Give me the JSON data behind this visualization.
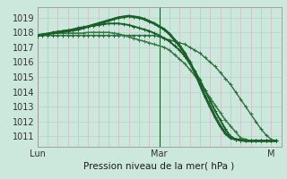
{
  "bg_color": "#cce8dc",
  "plot_bg_color": "#cce8dc",
  "grid_h_color": "#b8d8cc",
  "grid_v_color": "#d4b8c4",
  "ylabel_values": [
    1011,
    1012,
    1013,
    1014,
    1015,
    1016,
    1017,
    1018,
    1019
  ],
  "ymin": 1010.3,
  "ymax": 1019.7,
  "xmin": 0,
  "xmax": 48,
  "xlabel": "Pression niveau de la mer( hPa )",
  "xtick_labels": [
    "Lun",
    "Mar",
    "M"
  ],
  "xtick_positions": [
    0,
    24,
    46
  ],
  "series": [
    {
      "x": [
        0,
        1,
        2,
        3,
        4,
        5,
        6,
        7,
        8,
        9,
        10,
        11,
        12,
        13,
        14,
        15,
        16,
        17,
        18,
        19,
        20,
        21,
        22,
        23,
        24,
        25,
        26,
        27,
        28,
        29,
        30,
        31,
        32,
        33,
        34,
        35,
        36,
        37,
        38,
        39,
        40,
        41,
        42,
        43,
        44,
        45,
        46,
        47
      ],
      "y": [
        1017.8,
        1017.8,
        1017.8,
        1017.8,
        1017.8,
        1017.8,
        1017.8,
        1017.8,
        1017.8,
        1017.8,
        1017.8,
        1017.8,
        1017.8,
        1017.8,
        1017.8,
        1017.8,
        1017.8,
        1017.8,
        1017.8,
        1017.8,
        1017.8,
        1017.8,
        1017.8,
        1017.8,
        1017.7,
        1017.6,
        1017.5,
        1017.4,
        1017.3,
        1017.2,
        1017.0,
        1016.8,
        1016.6,
        1016.3,
        1016.0,
        1015.7,
        1015.3,
        1014.9,
        1014.5,
        1014.0,
        1013.5,
        1013.0,
        1012.5,
        1012.0,
        1011.5,
        1011.1,
        1010.8,
        1010.7
      ],
      "color": "#2d6e3e",
      "lw": 1.0,
      "marker": "+"
    },
    {
      "x": [
        0,
        1,
        2,
        3,
        4,
        5,
        6,
        7,
        8,
        9,
        10,
        11,
        12,
        13,
        14,
        15,
        16,
        17,
        18,
        19,
        20,
        21,
        22,
        23,
        24,
        25,
        26,
        27,
        28,
        29,
        30,
        31,
        32,
        33,
        34,
        35,
        36,
        37,
        38,
        39,
        40,
        41,
        42,
        43,
        44,
        45,
        46,
        47
      ],
      "y": [
        1017.8,
        1017.85,
        1017.9,
        1017.95,
        1017.95,
        1017.95,
        1017.95,
        1017.95,
        1017.95,
        1017.95,
        1018.0,
        1018.0,
        1018.0,
        1018.0,
        1018.0,
        1017.95,
        1017.9,
        1017.8,
        1017.7,
        1017.6,
        1017.5,
        1017.4,
        1017.3,
        1017.2,
        1017.1,
        1017.0,
        1016.8,
        1016.5,
        1016.2,
        1015.9,
        1015.5,
        1015.1,
        1014.6,
        1014.1,
        1013.6,
        1013.1,
        1012.6,
        1012.1,
        1011.7,
        1011.3,
        1010.9,
        1010.8,
        1010.7,
        1010.7,
        1010.7,
        1010.7,
        1010.7,
        1010.7
      ],
      "color": "#3a7a4a",
      "lw": 1.2,
      "marker": "+"
    },
    {
      "x": [
        0,
        1,
        2,
        3,
        4,
        5,
        6,
        7,
        8,
        9,
        10,
        11,
        12,
        13,
        14,
        15,
        16,
        17,
        18,
        19,
        20,
        21,
        22,
        23,
        24,
        25,
        26,
        27,
        28,
        29,
        30,
        31,
        32,
        33,
        34,
        35,
        36,
        37,
        38,
        39,
        40,
        41,
        42,
        43,
        44,
        45,
        46,
        47
      ],
      "y": [
        1017.8,
        1017.85,
        1017.9,
        1017.95,
        1018.0,
        1018.05,
        1018.1,
        1018.15,
        1018.2,
        1018.3,
        1018.4,
        1018.5,
        1018.6,
        1018.7,
        1018.8,
        1018.9,
        1019.0,
        1019.05,
        1019.1,
        1019.05,
        1019.0,
        1018.9,
        1018.75,
        1018.6,
        1018.4,
        1018.2,
        1017.9,
        1017.5,
        1017.1,
        1016.6,
        1016.0,
        1015.3,
        1014.5,
        1013.7,
        1013.0,
        1012.3,
        1011.7,
        1011.2,
        1010.9,
        1010.8,
        1010.75,
        1010.7,
        1010.7,
        1010.7,
        1010.7,
        1010.7,
        1010.7,
        1010.7
      ],
      "color": "#1a5e2a",
      "lw": 2.0,
      "marker": "+"
    },
    {
      "x": [
        0,
        1,
        2,
        3,
        4,
        5,
        6,
        7,
        8,
        9,
        10,
        11,
        12,
        13,
        14,
        15,
        16,
        17,
        18,
        19,
        20,
        21,
        22,
        23,
        24,
        25,
        26,
        27,
        28,
        29,
        30,
        31,
        32,
        33,
        34,
        35,
        36,
        37,
        38,
        39,
        40,
        41,
        42,
        43,
        44,
        45,
        46,
        47
      ],
      "y": [
        1017.8,
        1017.85,
        1017.9,
        1018.0,
        1018.05,
        1018.1,
        1018.15,
        1018.2,
        1018.3,
        1018.35,
        1018.4,
        1018.45,
        1018.5,
        1018.55,
        1018.6,
        1018.6,
        1018.6,
        1018.55,
        1018.5,
        1018.4,
        1018.3,
        1018.2,
        1018.1,
        1017.95,
        1017.8,
        1017.6,
        1017.4,
        1017.1,
        1016.8,
        1016.4,
        1015.9,
        1015.4,
        1014.8,
        1014.1,
        1013.4,
        1012.7,
        1012.1,
        1011.5,
        1011.0,
        1010.8,
        1010.75,
        1010.7,
        1010.7,
        1010.7,
        1010.7,
        1010.7,
        1010.7,
        1010.7
      ],
      "color": "#1a5e2a",
      "lw": 1.4,
      "marker": "+"
    }
  ],
  "vline_x": 24,
  "vline_color": "#1a5e2a",
  "vline_lw": 0.8
}
